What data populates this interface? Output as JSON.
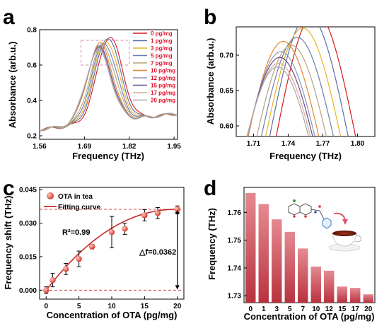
{
  "panels": {
    "a": "a",
    "b": "b",
    "c": "c",
    "d": "d"
  },
  "chart_data": [
    {
      "id": "a",
      "type": "line",
      "xlabel": "Frequency (THz)",
      "ylabel": "Absorbance (arb.u.)",
      "xlim": [
        1.56,
        1.96
      ],
      "ylim": [
        0.18,
        0.8
      ],
      "xticks": [
        "1.56",
        "1.69",
        "1.82",
        "1.95"
      ],
      "yticks": [
        "0.2",
        "0.4",
        "0.6",
        "0.8"
      ],
      "legend_position": "top-right",
      "series": [
        {
          "name": "0 pg/mg",
          "color": "#d7191c",
          "peak_x": 1.763,
          "peak_y": 0.725
        },
        {
          "name": "1 pg/mg",
          "color": "#5b6fa6",
          "peak_x": 1.757,
          "peak_y": 0.722
        },
        {
          "name": "3 pg/mg",
          "color": "#e6b422",
          "peak_x": 1.752,
          "peak_y": 0.705
        },
        {
          "name": "5 pg/mg",
          "color": "#6c7fb0",
          "peak_x": 1.747,
          "peak_y": 0.693
        },
        {
          "name": "7 pg/mg",
          "color": "#b7a47a",
          "peak_x": 1.742,
          "peak_y": 0.683
        },
        {
          "name": "10 pg/mg",
          "color": "#e2852c",
          "peak_x": 1.735,
          "peak_y": 0.69
        },
        {
          "name": "12 pg/mg",
          "color": "#8a96b8",
          "peak_x": 1.733,
          "peak_y": 0.676
        },
        {
          "name": "15 pg/mg",
          "color": "#6a4a8c",
          "peak_x": 1.732,
          "peak_y": 0.668
        },
        {
          "name": "17 pg/mg",
          "color": "#d9a89a",
          "peak_x": 1.731,
          "peak_y": 0.66
        },
        {
          "name": "20 pg/mg",
          "color": "#a7a7a7",
          "peak_x": 1.73,
          "peak_y": 0.655
        }
      ],
      "zoom_box": {
        "x": [
          1.68,
          1.82
        ],
        "y": [
          0.6,
          0.74
        ]
      }
    },
    {
      "id": "b",
      "type": "line",
      "xlabel": "Frequency (THz)",
      "ylabel": "Absorbance (arb.u.)",
      "xlim": [
        1.695,
        1.815
      ],
      "ylim": [
        0.585,
        0.74
      ],
      "xticks": [
        "1.71",
        "1.74",
        "1.77",
        "1.80"
      ],
      "yticks": [
        "0.60",
        "0.65",
        "0.70"
      ]
    },
    {
      "id": "c",
      "type": "scatter",
      "xlabel": "Concentration of OTA (pg/mg)",
      "ylabel": "Frequency shift (THz)",
      "xlim": [
        -1,
        21
      ],
      "ylim": [
        -0.004,
        0.046
      ],
      "xticks": [
        "0",
        "5",
        "10",
        "15",
        "20"
      ],
      "yticks": [
        "0.000",
        "0.015",
        "0.030",
        "0.045"
      ],
      "x": [
        0,
        1,
        3,
        5,
        7,
        10,
        12,
        15,
        17,
        20
      ],
      "y": [
        0.0,
        0.0045,
        0.0095,
        0.014,
        0.0195,
        0.026,
        0.0275,
        0.0335,
        0.0345,
        0.0362
      ],
      "err": [
        0.0015,
        0.003,
        0.0025,
        0.0035,
        0.001,
        0.007,
        0.0025,
        0.0025,
        0.0025,
        0.0015
      ],
      "legend": [
        "OTA in tea",
        "Fitting curve"
      ],
      "annotations": {
        "r2": "R²=0.99",
        "delta": "△f=0.0362"
      },
      "colors": {
        "point": "#e05545",
        "fit": "#c62828",
        "dash": "#d84040"
      }
    },
    {
      "id": "d",
      "type": "bar",
      "xlabel": "Concentration of OTA (pg/mg)",
      "ylabel": "Frequency (THz)",
      "ylim": [
        1.7275,
        1.769
      ],
      "yticks": [
        "1.73",
        "1.74",
        "1.75",
        "1.76"
      ],
      "categories": [
        "0",
        "1",
        "3",
        "5",
        "7",
        "10",
        "12",
        "15",
        "17",
        "20"
      ],
      "values": [
        1.767,
        1.763,
        1.7575,
        1.753,
        1.747,
        1.7405,
        1.739,
        1.7333,
        1.7328,
        1.7305
      ],
      "colors": {
        "top": "#e58a91",
        "bottom": "#b8323e"
      }
    }
  ]
}
